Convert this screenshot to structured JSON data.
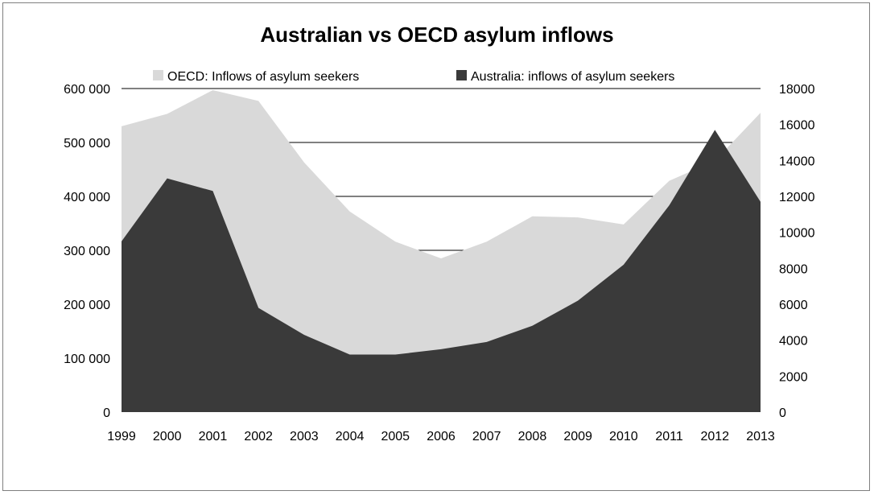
{
  "colors": {
    "oecd": "#d9d9d9",
    "australia": "#3a3a3a",
    "gridline": "#000000",
    "background": "#ffffff"
  },
  "chart_data": {
    "type": "area",
    "title": "Australian vs OECD asylum inflows",
    "categories": [
      "1999",
      "2000",
      "2001",
      "2002",
      "2003",
      "2004",
      "2005",
      "2006",
      "2007",
      "2008",
      "2009",
      "2010",
      "2011",
      "2012",
      "2013"
    ],
    "series": [
      {
        "name": "OECD: Inflows of asylum seekers",
        "axis": "left",
        "values": [
          530000,
          553000,
          597000,
          577000,
          463000,
          372000,
          316000,
          285000,
          316000,
          363000,
          361000,
          348000,
          429000,
          466000,
          555000
        ]
      },
      {
        "name": "Australia: inflows of asylum seekers",
        "axis": "right",
        "values": [
          9500,
          13000,
          12300,
          5800,
          4300,
          3200,
          3200,
          3500,
          3900,
          4800,
          6200,
          8200,
          11500,
          15700,
          11700
        ]
      }
    ],
    "y_left": {
      "ylim": [
        0,
        600000
      ],
      "ticks": [
        0,
        100000,
        200000,
        300000,
        400000,
        500000,
        600000
      ],
      "tick_labels": [
        "0",
        "100 000",
        "200 000",
        "300 000",
        "400 000",
        "500 000",
        "600 000"
      ]
    },
    "y_right": {
      "ylim": [
        0,
        18000
      ],
      "ticks": [
        0,
        2000,
        4000,
        6000,
        8000,
        10000,
        12000,
        14000,
        16000,
        18000
      ],
      "tick_labels": [
        "0",
        "2000",
        "4000",
        "6000",
        "8000",
        "10000",
        "12000",
        "14000",
        "16000",
        "18000"
      ]
    },
    "gridlines": "horizontal",
    "legend": "top"
  }
}
